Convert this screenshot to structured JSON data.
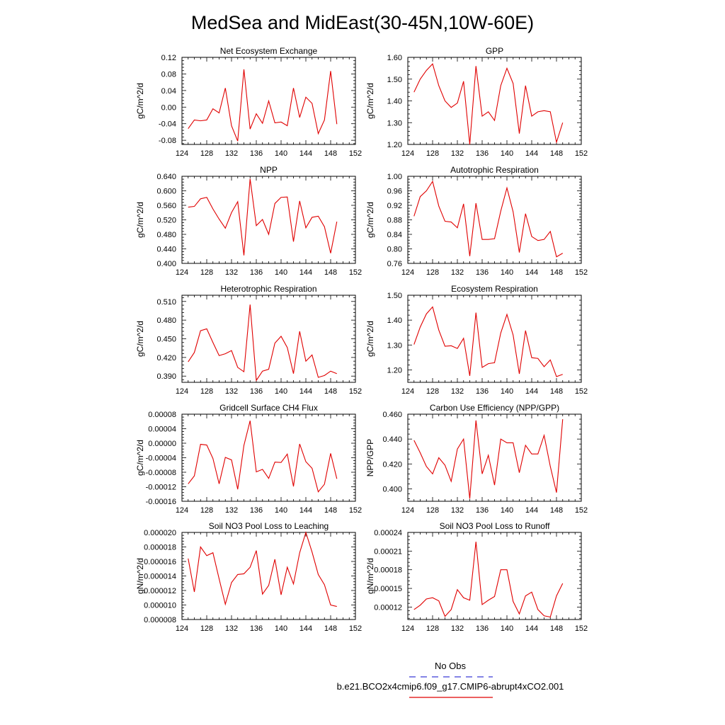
{
  "title": "MedSea and MidEast(30-45N,10W-60E)",
  "legend": {
    "obs_label": "No Obs",
    "obs_color": "#3b3bd6",
    "case_label": "b.e21.BCO2x4cmip6.f09_g17.CMIP6-abrupt4xCO2.001",
    "case_color": "#e00000"
  },
  "chart_data": [
    {
      "type": "line",
      "title": "Net Ecosystem Exchange",
      "ylabel": "gC/m^2/d",
      "xlim": [
        124,
        152
      ],
      "xticks": [
        "124",
        "128",
        "132",
        "136",
        "140",
        "144",
        "148",
        "152"
      ],
      "ylim": [
        -0.09,
        0.12
      ],
      "yticks": [
        -0.08,
        -0.04,
        0.0,
        0.04,
        0.08,
        0.12
      ],
      "ytick_labels": [
        "-0.08",
        "-0.04",
        "0.00",
        "0.04",
        "0.08",
        "0.12"
      ],
      "series": [
        {
          "name": "b.e21.BCO2x4cmip6.f09_g17.CMIP6-abrupt4xCO2.001",
          "color": "#e00000",
          "x": [
            125,
            126,
            127,
            128,
            129,
            130,
            131,
            132,
            133,
            134,
            135,
            136,
            137,
            138,
            139,
            140,
            141,
            142,
            143,
            144,
            145,
            146,
            147,
            148,
            149
          ],
          "y": [
            -0.052,
            -0.031,
            -0.033,
            -0.031,
            -0.004,
            -0.014,
            0.046,
            -0.045,
            -0.082,
            0.091,
            -0.053,
            -0.016,
            -0.039,
            0.015,
            -0.038,
            -0.036,
            -0.045,
            0.046,
            -0.025,
            0.024,
            0.009,
            -0.064,
            -0.031,
            0.087,
            -0.041
          ]
        }
      ]
    },
    {
      "type": "line",
      "title": "GPP",
      "ylabel": "gC/m^2/d",
      "xlim": [
        124,
        152
      ],
      "xticks": [
        "124",
        "128",
        "132",
        "136",
        "140",
        "144",
        "148",
        "152"
      ],
      "ylim": [
        1.2,
        1.6
      ],
      "yticks": [
        1.2,
        1.3,
        1.4,
        1.5,
        1.6
      ],
      "ytick_labels": [
        "1.20",
        "1.30",
        "1.40",
        "1.50",
        "1.60"
      ],
      "series": [
        {
          "name": "b.e21.BCO2x4cmip6.f09_g17.CMIP6-abrupt4xCO2.001",
          "color": "#e00000",
          "x": [
            125,
            126,
            127,
            128,
            129,
            130,
            131,
            132,
            133,
            134,
            135,
            136,
            137,
            138,
            139,
            140,
            141,
            142,
            143,
            144,
            145,
            146,
            147,
            148,
            149
          ],
          "y": [
            1.44,
            1.5,
            1.54,
            1.57,
            1.47,
            1.4,
            1.37,
            1.39,
            1.49,
            1.2,
            1.56,
            1.33,
            1.35,
            1.31,
            1.47,
            1.55,
            1.48,
            1.25,
            1.47,
            1.33,
            1.35,
            1.355,
            1.35,
            1.21,
            1.3
          ]
        }
      ]
    },
    {
      "type": "line",
      "title": "NPP",
      "ylabel": "gC/m^2/d",
      "xlim": [
        124,
        152
      ],
      "xticks": [
        "124",
        "128",
        "132",
        "136",
        "140",
        "144",
        "148",
        "152"
      ],
      "ylim": [
        0.4,
        0.64
      ],
      "yticks": [
        0.4,
        0.44,
        0.48,
        0.52,
        0.56,
        0.6,
        0.64
      ],
      "ytick_labels": [
        "0.400",
        "0.440",
        "0.480",
        "0.520",
        "0.560",
        "0.600",
        "0.640"
      ],
      "series": [
        {
          "name": "b.e21.BCO2x4cmip6.f09_g17.CMIP6-abrupt4xCO2.001",
          "color": "#e00000",
          "x": [
            125,
            126,
            127,
            128,
            129,
            130,
            131,
            132,
            133,
            134,
            135,
            136,
            137,
            138,
            139,
            140,
            141,
            142,
            143,
            144,
            145,
            146,
            147,
            148,
            149
          ],
          "y": [
            0.555,
            0.557,
            0.578,
            0.582,
            0.55,
            0.522,
            0.497,
            0.54,
            0.57,
            0.422,
            0.633,
            0.504,
            0.521,
            0.48,
            0.565,
            0.582,
            0.583,
            0.46,
            0.572,
            0.498,
            0.527,
            0.53,
            0.501,
            0.428,
            0.515
          ]
        }
      ]
    },
    {
      "type": "line",
      "title": "Autotrophic Respiration",
      "ylabel": "gC/m^2/d",
      "xlim": [
        124,
        152
      ],
      "xticks": [
        "124",
        "128",
        "132",
        "136",
        "140",
        "144",
        "148",
        "152"
      ],
      "ylim": [
        0.76,
        1.0
      ],
      "yticks": [
        0.76,
        0.8,
        0.84,
        0.88,
        0.92,
        0.96,
        1.0
      ],
      "ytick_labels": [
        "0.76",
        "0.80",
        "0.84",
        "0.88",
        "0.92",
        "0.96",
        "1.00"
      ],
      "series": [
        {
          "name": "b.e21.BCO2x4cmip6.f09_g17.CMIP6-abrupt4xCO2.001",
          "color": "#e00000",
          "x": [
            125,
            126,
            127,
            128,
            129,
            130,
            131,
            132,
            133,
            134,
            135,
            136,
            137,
            138,
            139,
            140,
            141,
            142,
            143,
            144,
            145,
            146,
            147,
            148,
            149
          ],
          "y": [
            0.89,
            0.944,
            0.96,
            0.986,
            0.918,
            0.876,
            0.874,
            0.858,
            0.924,
            0.78,
            0.926,
            0.826,
            0.826,
            0.828,
            0.904,
            0.968,
            0.902,
            0.79,
            0.897,
            0.834,
            0.823,
            0.826,
            0.848,
            0.778,
            0.788
          ]
        }
      ]
    },
    {
      "type": "line",
      "title": "Heterotrophic Respiration",
      "ylabel": "gC/m^2/d",
      "xlim": [
        124,
        152
      ],
      "xticks": [
        "124",
        "128",
        "132",
        "136",
        "140",
        "144",
        "148",
        "152"
      ],
      "ylim": [
        0.38,
        0.52
      ],
      "yticks": [
        0.39,
        0.42,
        0.45,
        0.48,
        0.51
      ],
      "ytick_labels": [
        "0.390",
        "0.420",
        "0.450",
        "0.480",
        "0.510"
      ],
      "series": [
        {
          "name": "b.e21.BCO2x4cmip6.f09_g17.CMIP6-abrupt4xCO2.001",
          "color": "#e00000",
          "x": [
            125,
            126,
            127,
            128,
            129,
            130,
            131,
            132,
            133,
            134,
            135,
            136,
            137,
            138,
            139,
            140,
            141,
            142,
            143,
            144,
            145,
            146,
            147,
            148,
            149
          ],
          "y": [
            0.413,
            0.428,
            0.463,
            0.466,
            0.444,
            0.423,
            0.426,
            0.431,
            0.404,
            0.397,
            0.505,
            0.383,
            0.398,
            0.401,
            0.443,
            0.454,
            0.436,
            0.394,
            0.462,
            0.414,
            0.424,
            0.388,
            0.391,
            0.398,
            0.394
          ]
        }
      ]
    },
    {
      "type": "line",
      "title": "Ecosystem Respiration",
      "ylabel": "gC/m^2/d",
      "xlim": [
        124,
        152
      ],
      "xticks": [
        "124",
        "128",
        "132",
        "136",
        "140",
        "144",
        "148",
        "152"
      ],
      "ylim": [
        1.15,
        1.5
      ],
      "yticks": [
        1.2,
        1.3,
        1.4,
        1.5
      ],
      "ytick_labels": [
        "1.20",
        "1.30",
        "1.40",
        "1.50"
      ],
      "series": [
        {
          "name": "b.e21.BCO2x4cmip6.f09_g17.CMIP6-abrupt4xCO2.001",
          "color": "#e00000",
          "x": [
            125,
            126,
            127,
            128,
            129,
            130,
            131,
            132,
            133,
            134,
            135,
            136,
            137,
            138,
            139,
            140,
            141,
            142,
            143,
            144,
            145,
            146,
            147,
            148,
            149
          ],
          "y": [
            1.302,
            1.372,
            1.425,
            1.453,
            1.36,
            1.295,
            1.297,
            1.286,
            1.327,
            1.176,
            1.43,
            1.21,
            1.225,
            1.229,
            1.348,
            1.423,
            1.34,
            1.184,
            1.358,
            1.249,
            1.246,
            1.213,
            1.24,
            1.173,
            1.182
          ]
        }
      ]
    },
    {
      "type": "line",
      "title": "Gridcell Surface CH4 Flux",
      "ylabel": "gC/m^2/d",
      "xlim": [
        124,
        152
      ],
      "xticks": [
        "124",
        "128",
        "132",
        "136",
        "140",
        "144",
        "148",
        "152"
      ],
      "ylim": [
        -0.00016,
        8e-05
      ],
      "yticks": [
        -0.00016,
        -0.00012,
        -8e-05,
        -4e-05,
        0.0,
        4e-05,
        8e-05
      ],
      "ytick_labels": [
        "-0.00016",
        "-0.00012",
        "-0.00008",
        "-0.00004",
        "0.00000",
        "0.00004",
        "0.00008"
      ],
      "series": [
        {
          "name": "b.e21.BCO2x4cmip6.f09_g17.CMIP6-abrupt4xCO2.001",
          "color": "#e00000",
          "x": [
            125,
            126,
            127,
            128,
            129,
            130,
            131,
            132,
            133,
            134,
            135,
            136,
            137,
            138,
            139,
            140,
            141,
            142,
            143,
            144,
            145,
            146,
            147,
            148,
            149
          ],
          "y": [
            -0.000112,
            -9e-05,
            -3e-06,
            -5e-06,
            -4.2e-05,
            -0.000112,
            -3.9e-05,
            -4.6e-05,
            -0.000127,
            -6e-06,
            6.2e-05,
            -7.9e-05,
            -7.2e-05,
            -9.7e-05,
            -5.2e-05,
            -5.3e-05,
            -3e-05,
            -0.000119,
            -2e-06,
            -5.1e-05,
            -6.9e-05,
            -0.000134,
            -0.000113,
            -2.8e-05,
            -9.8e-05
          ]
        }
      ]
    },
    {
      "type": "line",
      "title": "Carbon Use Efficiency (NPP/GPP)",
      "ylabel": "NPP/GPP",
      "xlim": [
        124,
        152
      ],
      "xticks": [
        "124",
        "128",
        "132",
        "136",
        "140",
        "144",
        "148",
        "152"
      ],
      "ylim": [
        0.39,
        0.46
      ],
      "yticks": [
        0.4,
        0.42,
        0.44,
        0.46
      ],
      "ytick_labels": [
        "0.400",
        "0.420",
        "0.440",
        "0.460"
      ],
      "series": [
        {
          "name": "b.e21.BCO2x4cmip6.f09_g17.CMIP6-abrupt4xCO2.001",
          "color": "#e00000",
          "x": [
            125,
            126,
            127,
            128,
            129,
            130,
            131,
            132,
            133,
            134,
            135,
            136,
            137,
            138,
            139,
            140,
            141,
            142,
            143,
            144,
            145,
            146,
            147,
            148,
            149
          ],
          "y": [
            0.439,
            0.429,
            0.418,
            0.412,
            0.425,
            0.419,
            0.406,
            0.432,
            0.44,
            0.392,
            0.455,
            0.412,
            0.427,
            0.403,
            0.44,
            0.437,
            0.437,
            0.413,
            0.435,
            0.428,
            0.428,
            0.443,
            0.418,
            0.397,
            0.456
          ]
        }
      ]
    },
    {
      "type": "line",
      "title": "Soil NO3 Pool Loss to Leaching",
      "ylabel": "gN/m^2/d",
      "xlim": [
        124,
        152
      ],
      "xticks": [
        "124",
        "128",
        "132",
        "136",
        "140",
        "144",
        "148",
        "152"
      ],
      "ylim": [
        8e-06,
        2e-05
      ],
      "yticks": [
        8e-06,
        1e-05,
        1.2e-05,
        1.4e-05,
        1.6e-05,
        1.8e-05,
        2e-05
      ],
      "ytick_labels": [
        "0.000008",
        "0.000010",
        "0.000012",
        "0.000014",
        "0.000016",
        "0.000018",
        "0.000020"
      ],
      "series": [
        {
          "name": "b.e21.BCO2x4cmip6.f09_g17.CMIP6-abrupt4xCO2.001",
          "color": "#e00000",
          "x": [
            125,
            126,
            127,
            128,
            129,
            130,
            131,
            132,
            133,
            134,
            135,
            136,
            137,
            138,
            139,
            140,
            141,
            142,
            143,
            144,
            145,
            146,
            147,
            148,
            149
          ],
          "y": [
            1.64e-05,
            1.18e-05,
            1.8e-05,
            1.68e-05,
            1.72e-05,
            1.36e-05,
            1.01e-05,
            1.31e-05,
            1.42e-05,
            1.43e-05,
            1.52e-05,
            1.75e-05,
            1.15e-05,
            1.27e-05,
            1.63e-05,
            1.14e-05,
            1.52e-05,
            1.29e-05,
            1.72e-05,
            2e-05,
            1.73e-05,
            1.42e-05,
            1.28e-05,
            1e-05,
            9.8e-06
          ]
        }
      ]
    },
    {
      "type": "line",
      "title": "Soil NO3 Pool Loss to Runoff",
      "ylabel": "gN/m^2/d",
      "xlim": [
        124,
        152
      ],
      "xticks": [
        "124",
        "128",
        "132",
        "136",
        "140",
        "144",
        "148",
        "152"
      ],
      "ylim": [
        0.0001,
        0.00024
      ],
      "yticks": [
        0.00012,
        0.00015,
        0.00018,
        0.00021,
        0.00024
      ],
      "ytick_labels": [
        "0.00012",
        "0.00015",
        "0.00018",
        "0.00021",
        "0.00024"
      ],
      "series": [
        {
          "name": "b.e21.BCO2x4cmip6.f09_g17.CMIP6-abrupt4xCO2.001",
          "color": "#e00000",
          "x": [
            125,
            126,
            127,
            128,
            129,
            130,
            131,
            132,
            133,
            134,
            135,
            136,
            137,
            138,
            139,
            140,
            141,
            142,
            143,
            144,
            145,
            146,
            147,
            148,
            149
          ],
          "y": [
            0.000116,
            0.000123,
            0.000133,
            0.000135,
            0.00013,
            0.000105,
            0.000116,
            0.000148,
            0.000135,
            0.000131,
            0.000225,
            0.000124,
            0.000131,
            0.000137,
            0.00018,
            0.00018,
            0.000129,
            0.000109,
            0.000138,
            0.000144,
            0.000116,
            0.000106,
            0.000104,
            0.000138,
            0.000158
          ]
        }
      ]
    }
  ]
}
